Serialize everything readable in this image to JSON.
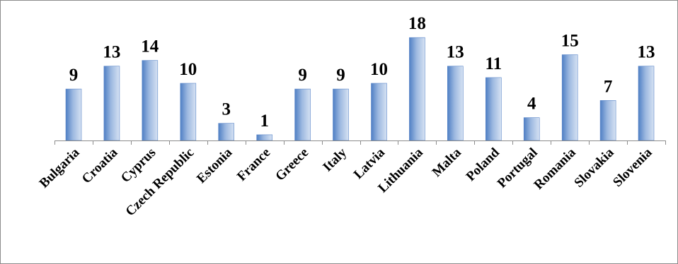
{
  "chart_data": {
    "type": "bar",
    "categories": [
      "Bulgaria",
      "Croatia",
      "Cyprus",
      "Czech Republic",
      "Estonia",
      "France",
      "Greece",
      "Italy",
      "Latvia",
      "Lithuania",
      "Malta",
      "Poland",
      "Portugal",
      "Romania",
      "Slovakia",
      "Slovenia"
    ],
    "values": [
      9,
      13,
      14,
      10,
      3,
      1,
      9,
      9,
      10,
      18,
      13,
      11,
      4,
      15,
      7,
      13
    ],
    "ylim": [
      0,
      18
    ],
    "grid": false,
    "legend": "none",
    "data_labels": true,
    "colors": {
      "bar_light": "#d6e2f3",
      "bar_mid": "#9cb8e0",
      "bar_dark": "#4f7fc4",
      "bar_edge": "#5a86c8",
      "axis": "#8c8c8c",
      "text": "#000000"
    }
  }
}
